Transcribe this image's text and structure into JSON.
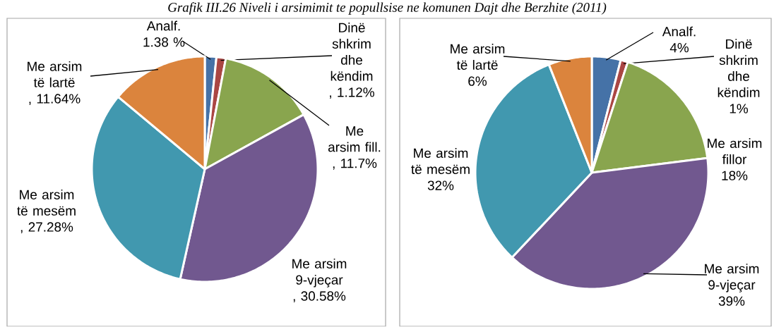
{
  "chart_data": [
    {
      "type": "pie",
      "title": "Grafik III.26 Niveli i arsimimit te popullsise ne komunen  Dajt dhe Berzhite (2011)",
      "categories": [
        "Analf.",
        "Dinë shkrim dhe këndim",
        "Me arsim fill.",
        "Me arsim 9-vjeçar",
        "Me arsim të mesëm",
        "Me arsim të lartë"
      ],
      "values": [
        1.38,
        1.12,
        11.7,
        30.58,
        27.28,
        11.64
      ],
      "value_labels": [
        "1.38 %",
        ", 1.12%",
        ", 11.7%",
        ", 30.58%",
        ", 27.28%",
        ", 11.64%"
      ],
      "colors": [
        "#4572a7",
        "#aa4643",
        "#89a54e",
        "#71588f",
        "#4198af",
        "#db843d"
      ]
    },
    {
      "type": "pie",
      "categories": [
        "Analf.",
        "Dinë shkrim dhe këndim",
        "Me arsim fillor",
        "Me arsim 9-vjeçar",
        "Me arsim të mesëm",
        "Me arsim të lartë"
      ],
      "values": [
        4,
        1,
        18,
        39,
        32,
        6
      ],
      "value_labels": [
        "4%",
        "1%",
        "18%",
        "39%",
        "32%",
        "6%"
      ],
      "colors": [
        "#4572a7",
        "#aa4643",
        "#89a54e",
        "#71588f",
        "#4198af",
        "#db843d"
      ]
    }
  ]
}
